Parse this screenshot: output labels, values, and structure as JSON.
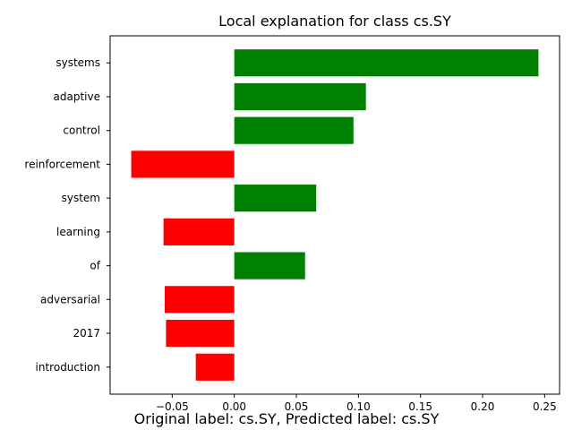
{
  "chart_data": {
    "type": "bar",
    "orientation": "horizontal",
    "title": "Local explanation for class cs.SY",
    "xlabel": "",
    "ylabel": "",
    "categories": [
      "systems",
      "adaptive",
      "control",
      "reinforcement",
      "system",
      "learning",
      "of",
      "adversarial",
      "2017",
      "introduction"
    ],
    "values": [
      0.245,
      0.106,
      0.096,
      -0.083,
      0.066,
      -0.057,
      0.057,
      -0.056,
      -0.055,
      -0.031
    ],
    "xlim": [
      -0.1,
      0.262
    ],
    "xticks": [
      -0.05,
      0.0,
      0.05,
      0.1,
      0.15,
      0.2,
      0.25
    ],
    "xtick_labels": [
      "−0.05",
      "0.00",
      "0.05",
      "0.10",
      "0.15",
      "0.20",
      "0.25"
    ],
    "positive_color": "#008000",
    "negative_color": "#ff0000",
    "grid": false
  },
  "caption": "Original label: cs.SY, Predicted label: cs.SY"
}
